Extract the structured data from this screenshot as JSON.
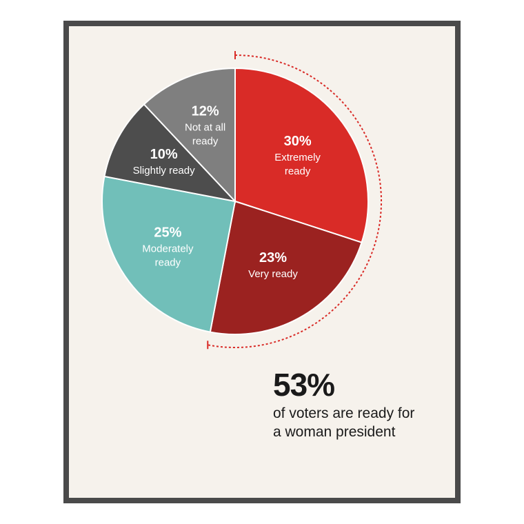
{
  "chart_data": {
    "type": "pie",
    "slices": [
      {
        "pct_label": "30%",
        "label_lines": [
          "Extremely",
          "ready"
        ],
        "value": 30,
        "color": "#d92b27"
      },
      {
        "pct_label": "23%",
        "label_lines": [
          "Very ready"
        ],
        "value": 23,
        "color": "#9b2220"
      },
      {
        "pct_label": "25%",
        "label_lines": [
          "Moderately",
          "ready"
        ],
        "value": 25,
        "color": "#71bfb9"
      },
      {
        "pct_label": "10%",
        "label_lines": [
          "Slightly ready"
        ],
        "value": 10,
        "color": "#4d4d4d"
      },
      {
        "pct_label": "12%",
        "label_lines": [
          "Not at all",
          "ready"
        ],
        "value": 12,
        "color": "#7f7f7f"
      }
    ],
    "bracket_color": "#d92b27"
  },
  "callout": {
    "value": "53%",
    "text": "of voters are ready for a woman president"
  }
}
